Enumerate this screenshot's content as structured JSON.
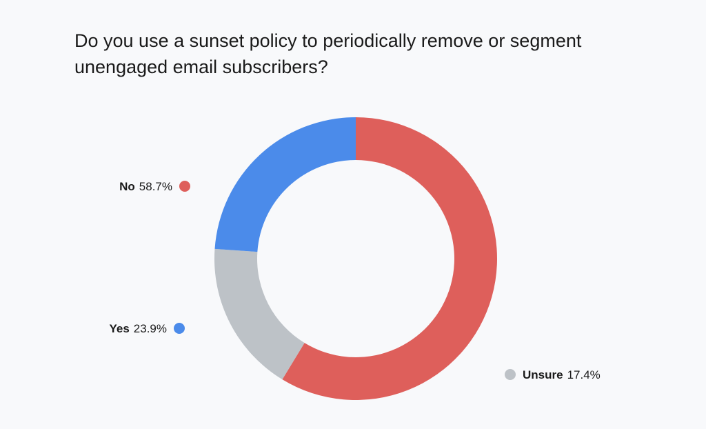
{
  "chart_data": {
    "type": "pie",
    "title": "Do you use a sunset policy to periodically remove or segment unengaged email subscribers?",
    "donut": true,
    "slices": [
      {
        "name": "No",
        "value": 58.7,
        "label": "58.7%",
        "color": "#de5f5b"
      },
      {
        "name": "Unsure",
        "value": 17.4,
        "label": "17.4%",
        "color": "#bdc2c7"
      },
      {
        "name": "Yes",
        "value": 23.9,
        "label": "23.9%",
        "color": "#4b8bea"
      }
    ]
  }
}
